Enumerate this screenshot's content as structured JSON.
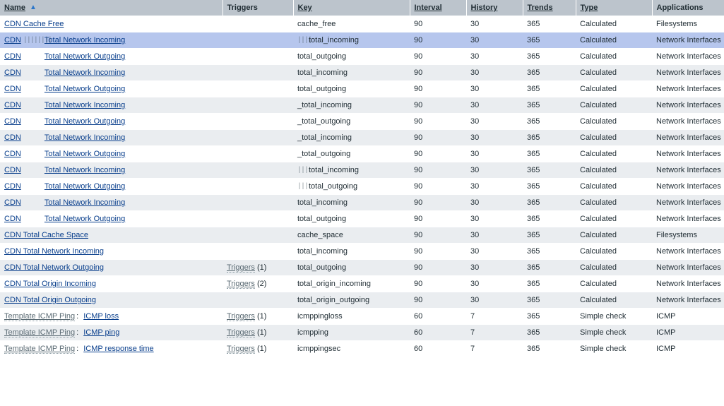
{
  "columns": {
    "name": {
      "label": "Name",
      "sortable": true,
      "sorted": true
    },
    "triggers": {
      "label": "Triggers",
      "sortable": false
    },
    "key": {
      "label": "Key",
      "sortable": true
    },
    "interval": {
      "label": "Interval",
      "sortable": true
    },
    "history": {
      "label": "History",
      "sortable": true
    },
    "trends": {
      "label": "Trends",
      "sortable": true
    },
    "type": {
      "label": "Type",
      "sortable": true
    },
    "apps": {
      "label": "Applications",
      "sortable": false
    }
  },
  "rows": [
    {
      "name_first": "CDN Cache Free",
      "name_first_tmpl": false,
      "name_glyph": "",
      "name_second": "",
      "triggers": "",
      "key_glyph": "",
      "key": "cache_free",
      "interval": "90",
      "history": "30",
      "trends": "365",
      "type": "Calculated",
      "apps": "Filesystems",
      "selected": false,
      "odd": false
    },
    {
      "name_first": "CDN",
      "name_first_tmpl": false,
      "name_glyph": "||||||||",
      "name_second": "Total Network Incoming",
      "triggers": "",
      "key_glyph": "||||",
      "key": "total_incoming",
      "interval": "90",
      "history": "30",
      "trends": "365",
      "type": "Calculated",
      "apps": "Network Interfaces",
      "selected": true,
      "odd": true
    },
    {
      "name_first": "CDN",
      "name_first_tmpl": false,
      "name_glyph": "",
      "name_second": "Total Network Outgoing",
      "triggers": "",
      "key_glyph": "",
      "key": "total_outgoing",
      "interval": "90",
      "history": "30",
      "trends": "365",
      "type": "Calculated",
      "apps": "Network Interfaces",
      "selected": false,
      "odd": false
    },
    {
      "name_first": "CDN",
      "name_first_tmpl": false,
      "name_glyph": "",
      "name_second": "Total Network Incoming",
      "triggers": "",
      "key_glyph": "",
      "key": "total_incoming",
      "interval": "90",
      "history": "30",
      "trends": "365",
      "type": "Calculated",
      "apps": "Network Interfaces",
      "selected": false,
      "odd": true
    },
    {
      "name_first": "CDN",
      "name_first_tmpl": false,
      "name_glyph": "",
      "name_second": "Total Network Outgoing",
      "triggers": "",
      "key_glyph": "",
      "key": "total_outgoing",
      "interval": "90",
      "history": "30",
      "trends": "365",
      "type": "Calculated",
      "apps": "Network Interfaces",
      "selected": false,
      "odd": false
    },
    {
      "name_first": "CDN",
      "name_first_tmpl": false,
      "name_glyph": "",
      "name_second": "Total Network Incoming",
      "triggers": "",
      "key_glyph": "",
      "key": "_total_incoming",
      "interval": "90",
      "history": "30",
      "trends": "365",
      "type": "Calculated",
      "apps": "Network Interfaces",
      "selected": false,
      "odd": true
    },
    {
      "name_first": "CDN",
      "name_first_tmpl": false,
      "name_glyph": "",
      "name_second": "Total Network Outgoing",
      "triggers": "",
      "key_glyph": "",
      "key": "_total_outgoing",
      "interval": "90",
      "history": "30",
      "trends": "365",
      "type": "Calculated",
      "apps": "Network Interfaces",
      "selected": false,
      "odd": false
    },
    {
      "name_first": "CDN",
      "name_first_tmpl": false,
      "name_glyph": "",
      "name_second": "Total Network Incoming",
      "triggers": "",
      "key_glyph": "",
      "key": "_total_incoming",
      "interval": "90",
      "history": "30",
      "trends": "365",
      "type": "Calculated",
      "apps": "Network Interfaces",
      "selected": false,
      "odd": true
    },
    {
      "name_first": "CDN",
      "name_first_tmpl": false,
      "name_glyph": "",
      "name_second": "Total Network Outgoing",
      "triggers": "",
      "key_glyph": "",
      "key": "_total_outgoing",
      "interval": "90",
      "history": "30",
      "trends": "365",
      "type": "Calculated",
      "apps": "Network Interfaces",
      "selected": false,
      "odd": false
    },
    {
      "name_first": "CDN",
      "name_first_tmpl": false,
      "name_glyph": "",
      "name_second": "Total Network Incoming",
      "triggers": "",
      "key_glyph": "|||",
      "key": "total_incoming",
      "interval": "90",
      "history": "30",
      "trends": "365",
      "type": "Calculated",
      "apps": "Network Interfaces",
      "selected": false,
      "odd": true
    },
    {
      "name_first": "CDN",
      "name_first_tmpl": false,
      "name_glyph": "",
      "name_second": "Total Network Outgoing",
      "triggers": "",
      "key_glyph": "|||",
      "key": "total_outgoing",
      "interval": "90",
      "history": "30",
      "trends": "365",
      "type": "Calculated",
      "apps": "Network Interfaces",
      "selected": false,
      "odd": false
    },
    {
      "name_first": "CDN",
      "name_first_tmpl": false,
      "name_glyph": "",
      "name_second": "Total Network Incoming",
      "triggers": "",
      "key_glyph": "",
      "key": "total_incoming",
      "interval": "90",
      "history": "30",
      "trends": "365",
      "type": "Calculated",
      "apps": "Network Interfaces",
      "selected": false,
      "odd": true
    },
    {
      "name_first": "CDN",
      "name_first_tmpl": false,
      "name_glyph": "",
      "name_second": "Total Network Outgoing",
      "triggers": "",
      "key_glyph": "",
      "key": "total_outgoing",
      "interval": "90",
      "history": "30",
      "trends": "365",
      "type": "Calculated",
      "apps": "Network Interfaces",
      "selected": false,
      "odd": false
    },
    {
      "name_first": "CDN Total Cache Space",
      "name_first_tmpl": false,
      "name_glyph": "",
      "name_second": "",
      "triggers": "",
      "key_glyph": "",
      "key": "cache_space",
      "interval": "90",
      "history": "30",
      "trends": "365",
      "type": "Calculated",
      "apps": "Filesystems",
      "selected": false,
      "odd": true
    },
    {
      "name_first": "CDN Total Network Incoming",
      "name_first_tmpl": false,
      "name_glyph": "",
      "name_second": "",
      "triggers": "",
      "key_glyph": "",
      "key": "total_incoming",
      "interval": "90",
      "history": "30",
      "trends": "365",
      "type": "Calculated",
      "apps": "Network Interfaces",
      "selected": false,
      "odd": false
    },
    {
      "name_first": "CDN Total Network Outgoing",
      "name_first_tmpl": false,
      "name_glyph": "",
      "name_second": "",
      "triggers": "Triggers",
      "triggers_count": "(1)",
      "key_glyph": "",
      "key": "total_outgoing",
      "interval": "90",
      "history": "30",
      "trends": "365",
      "type": "Calculated",
      "apps": "Network Interfaces",
      "selected": false,
      "odd": true
    },
    {
      "name_first": "CDN Total Origin Incoming",
      "name_first_tmpl": false,
      "name_glyph": "",
      "name_second": "",
      "triggers": "Triggers",
      "triggers_count": "(2)",
      "key_glyph": "",
      "key": "total_origin_incoming",
      "interval": "90",
      "history": "30",
      "trends": "365",
      "type": "Calculated",
      "apps": "Network Interfaces",
      "selected": false,
      "odd": false
    },
    {
      "name_first": "CDN Total Origin Outgoing",
      "name_first_tmpl": false,
      "name_glyph": "",
      "name_second": "",
      "triggers": "",
      "key_glyph": "",
      "key": "total_origin_outgoing",
      "interval": "90",
      "history": "30",
      "trends": "365",
      "type": "Calculated",
      "apps": "Network Interfaces",
      "selected": false,
      "odd": true
    },
    {
      "name_first": "Template ICMP Ping",
      "name_first_tmpl": true,
      "name_sep": ":",
      "name_glyph": "",
      "name_second": "ICMP loss",
      "triggers": "Triggers",
      "triggers_count": "(1)",
      "key_glyph": "",
      "key": "icmppingloss",
      "interval": "60",
      "history": "7",
      "trends": "365",
      "type": "Simple check",
      "apps": "ICMP",
      "selected": false,
      "odd": false
    },
    {
      "name_first": "Template ICMP Ping",
      "name_first_tmpl": true,
      "name_sep": ":",
      "name_glyph": "",
      "name_second": "ICMP ping",
      "triggers": "Triggers",
      "triggers_count": "(1)",
      "key_glyph": "",
      "key": "icmpping",
      "interval": "60",
      "history": "7",
      "trends": "365",
      "type": "Simple check",
      "apps": "ICMP",
      "selected": false,
      "odd": true
    },
    {
      "name_first": "Template ICMP Ping",
      "name_first_tmpl": true,
      "name_sep": ":",
      "name_glyph": "",
      "name_second": "ICMP response time",
      "triggers": "Triggers",
      "triggers_count": "(1)",
      "key_glyph": "",
      "key": "icmppingsec",
      "interval": "60",
      "history": "7",
      "trends": "365",
      "type": "Simple check",
      "apps": "ICMP",
      "selected": false,
      "odd": false
    }
  ]
}
